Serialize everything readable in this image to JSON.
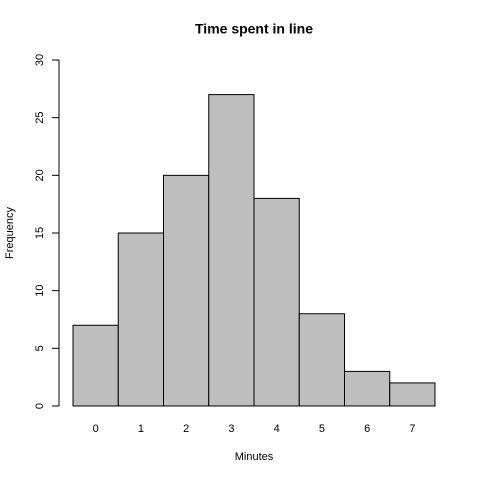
{
  "chart_data": {
    "type": "bar",
    "title": "Time spent in line",
    "x_label": "Minutes",
    "y_label": "Frequency",
    "categories": [
      "0",
      "1",
      "2",
      "3",
      "4",
      "5",
      "6",
      "7"
    ],
    "values": [
      7,
      15,
      20,
      27,
      18,
      8,
      3,
      2
    ],
    "color": "#bebebe",
    "ylim": [
      0,
      30
    ],
    "yticks": [
      0,
      5,
      10,
      15,
      20,
      25,
      30
    ]
  }
}
